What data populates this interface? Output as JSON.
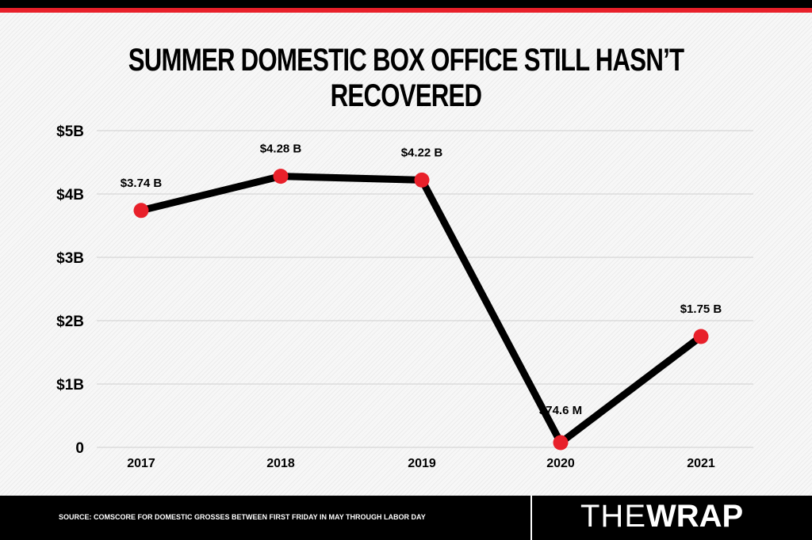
{
  "chart_data": {
    "type": "line",
    "title": "SUMMER DOMESTIC BOX OFFICE STILL HASN’T RECOVERED",
    "categories": [
      "2017",
      "2018",
      "2019",
      "2020",
      "2021"
    ],
    "values": [
      3.74,
      4.28,
      4.22,
      0.0746,
      1.75
    ],
    "value_unit": "billions USD",
    "data_labels": [
      "$3.74 B",
      "$4.28 B",
      "$4.22 B",
      "$74.6 M",
      "$1.75 B"
    ],
    "yticks": [
      0,
      1,
      2,
      3,
      4,
      5
    ],
    "ytick_labels": [
      "0",
      "$1B",
      "$2B",
      "$3B",
      "$4B",
      "$5B"
    ],
    "ylim": [
      0,
      5
    ],
    "grid": true,
    "xlabel": "",
    "ylabel": "",
    "colors": {
      "line": "#000000",
      "marker": "#e8202a"
    }
  },
  "footer": {
    "source": "SOURCE: COMSCORE FOR DOMESTIC GROSSES BETWEEN FIRST FRIDAY IN MAY THROUGH LABOR DAY",
    "logo_the": "THE",
    "logo_wrap": "WRAP"
  }
}
